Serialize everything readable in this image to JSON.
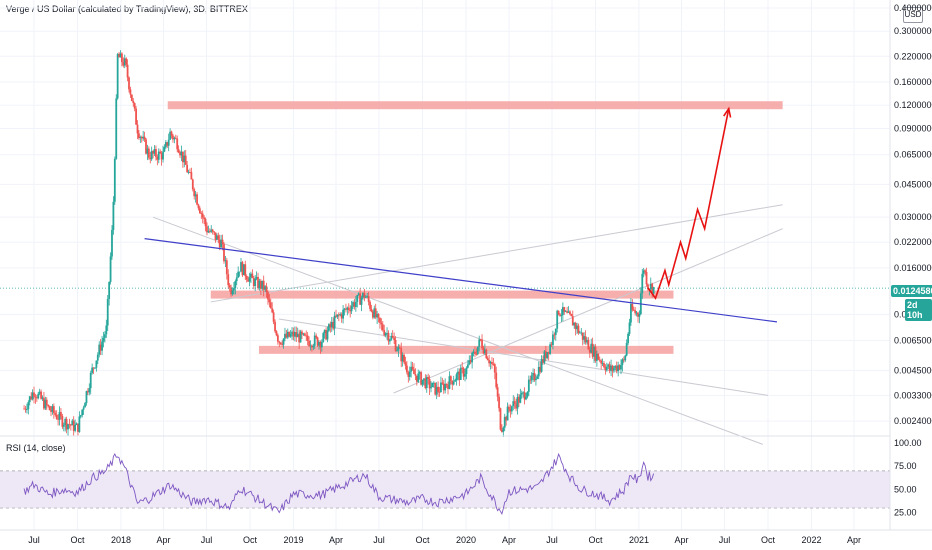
{
  "header": {
    "title": "Verge / US Dollar (calculated by TradingView), 3D, BITTREX",
    "currency_button": "USD"
  },
  "rsi": {
    "title": "RSI (14, close)",
    "ticks": [
      "100.00",
      "75.00",
      "50.00",
      "25.00"
    ],
    "tick_values": [
      100,
      75,
      50,
      25
    ],
    "upper_band": 70,
    "lower_band": 30
  },
  "badges": {
    "last_price": "0.01245807",
    "countdown": "2d 10h"
  },
  "colors": {
    "up": "#26a69a",
    "down": "#ef5350",
    "zone": "#f4a19f",
    "trendline": "#3f3fc9",
    "projection": "#e81212",
    "rsi_line": "#7e57c2",
    "rsi_band_fill": "#ede7f6",
    "channel": "#c9c9d1"
  },
  "chart_data": {
    "type": "candlestick",
    "title": "Verge / US Dollar (calculated by TradingView), 3D, BITTREX",
    "y_scale": "log",
    "y_ticks": [
      "0.40000000",
      "0.30000000",
      "0.22000000",
      "0.16000000",
      "0.12000000",
      "0.09000000",
      "0.06500000",
      "0.04500000",
      "0.03000000",
      "0.02200000",
      "0.01600000",
      "0.00900000",
      "0.00650000",
      "0.00450000",
      "0.00330000",
      "0.00240000"
    ],
    "y_tick_values": [
      0.4,
      0.3,
      0.22,
      0.16,
      0.12,
      0.09,
      0.065,
      0.045,
      0.03,
      0.022,
      0.016,
      0.009,
      0.0065,
      0.0045,
      0.0033,
      0.0024
    ],
    "x_ticks": [
      "Jul",
      "Oct",
      "2018",
      "Apr",
      "Jul",
      "Oct",
      "2019",
      "Apr",
      "Jul",
      "Oct",
      "2020",
      "Apr",
      "Jul",
      "Oct",
      "2021",
      "Apr",
      "Jul",
      "Oct",
      "2022",
      "Apr"
    ],
    "x_tick_dates": [
      "2017-07-01",
      "2017-10-01",
      "2018-01-01",
      "2018-04-01",
      "2018-07-01",
      "2018-10-01",
      "2019-01-01",
      "2019-04-01",
      "2019-07-01",
      "2019-10-01",
      "2020-01-01",
      "2020-04-01",
      "2020-07-01",
      "2020-10-01",
      "2021-01-01",
      "2021-04-01",
      "2021-07-01",
      "2021-10-01",
      "2022-01-01",
      "2022-04-01"
    ],
    "price_path": [
      [
        "2017-06-10",
        0.0028
      ],
      [
        "2017-07-01",
        0.0035
      ],
      [
        "2017-08-01",
        0.0028
      ],
      [
        "2017-09-01",
        0.0024
      ],
      [
        "2017-10-01",
        0.0022
      ],
      [
        "2017-11-01",
        0.0045
      ],
      [
        "2017-12-01",
        0.0075
      ],
      [
        "2017-12-15",
        0.03
      ],
      [
        "2017-12-25",
        0.22
      ],
      [
        "2018-01-10",
        0.2
      ],
      [
        "2018-02-05",
        0.09
      ],
      [
        "2018-03-01",
        0.065
      ],
      [
        "2018-04-01",
        0.065
      ],
      [
        "2018-04-15",
        0.085
      ],
      [
        "2018-05-01",
        0.075
      ],
      [
        "2018-06-01",
        0.045
      ],
      [
        "2018-07-01",
        0.026
      ],
      [
        "2018-08-01",
        0.022
      ],
      [
        "2018-08-20",
        0.012
      ],
      [
        "2018-09-10",
        0.0165
      ],
      [
        "2018-10-01",
        0.014
      ],
      [
        "2018-11-01",
        0.0125
      ],
      [
        "2018-12-01",
        0.0065
      ],
      [
        "2019-01-01",
        0.007
      ],
      [
        "2019-02-01",
        0.0065
      ],
      [
        "2019-03-01",
        0.0065
      ],
      [
        "2019-04-01",
        0.0085
      ],
      [
        "2019-05-01",
        0.01
      ],
      [
        "2019-06-01",
        0.0115
      ],
      [
        "2019-07-01",
        0.008
      ],
      [
        "2019-08-01",
        0.0065
      ],
      [
        "2019-09-01",
        0.0045
      ],
      [
        "2019-10-01",
        0.004
      ],
      [
        "2019-11-01",
        0.0035
      ],
      [
        "2019-12-01",
        0.004
      ],
      [
        "2020-01-01",
        0.0045
      ],
      [
        "2020-02-01",
        0.0065
      ],
      [
        "2020-03-01",
        0.0045
      ],
      [
        "2020-03-15",
        0.0022
      ],
      [
        "2020-04-01",
        0.0028
      ],
      [
        "2020-05-01",
        0.0033
      ],
      [
        "2020-06-01",
        0.0045
      ],
      [
        "2020-07-01",
        0.0065
      ],
      [
        "2020-07-15",
        0.0095
      ],
      [
        "2020-08-10",
        0.0085
      ],
      [
        "2020-09-01",
        0.007
      ],
      [
        "2020-10-01",
        0.0055
      ],
      [
        "2020-11-01",
        0.0045
      ],
      [
        "2020-12-01",
        0.005
      ],
      [
        "2020-12-15",
        0.0095
      ],
      [
        "2021-01-01",
        0.009
      ],
      [
        "2021-01-10",
        0.0165
      ],
      [
        "2021-01-20",
        0.013
      ],
      [
        "2021-02-01",
        0.01245807
      ]
    ],
    "rsi_path": [
      [
        "2017-06-10",
        48
      ],
      [
        "2017-07-01",
        55
      ],
      [
        "2017-08-01",
        45
      ],
      [
        "2017-09-01",
        50
      ],
      [
        "2017-10-01",
        47
      ],
      [
        "2017-11-01",
        62
      ],
      [
        "2017-12-01",
        70
      ],
      [
        "2017-12-25",
        88
      ],
      [
        "2018-01-10",
        72
      ],
      [
        "2018-02-05",
        35
      ],
      [
        "2018-03-01",
        40
      ],
      [
        "2018-04-15",
        55
      ],
      [
        "2018-06-01",
        36
      ],
      [
        "2018-07-01",
        40
      ],
      [
        "2018-08-20",
        30
      ],
      [
        "2018-09-10",
        52
      ],
      [
        "2018-10-01",
        45
      ],
      [
        "2018-12-01",
        25
      ],
      [
        "2019-01-01",
        45
      ],
      [
        "2019-03-01",
        44
      ],
      [
        "2019-05-01",
        58
      ],
      [
        "2019-06-01",
        66
      ],
      [
        "2019-07-01",
        42
      ],
      [
        "2019-09-01",
        36
      ],
      [
        "2019-10-01",
        40
      ],
      [
        "2019-11-01",
        36
      ],
      [
        "2020-01-01",
        45
      ],
      [
        "2020-02-01",
        62
      ],
      [
        "2020-03-15",
        26
      ],
      [
        "2020-04-01",
        48
      ],
      [
        "2020-06-01",
        52
      ],
      [
        "2020-07-15",
        85
      ],
      [
        "2020-08-10",
        62
      ],
      [
        "2020-09-01",
        50
      ],
      [
        "2020-10-01",
        45
      ],
      [
        "2020-11-01",
        38
      ],
      [
        "2020-12-01",
        50
      ],
      [
        "2020-12-15",
        66
      ],
      [
        "2021-01-01",
        58
      ],
      [
        "2021-01-10",
        82
      ],
      [
        "2021-01-20",
        64
      ],
      [
        "2021-02-01",
        65
      ]
    ],
    "zones": [
      {
        "from": "2018-04-10",
        "to": "2021-11-01",
        "price": 0.12
      },
      {
        "from": "2018-07-10",
        "to": "2021-03-15",
        "price": 0.0115
      },
      {
        "from": "2018-10-20",
        "to": "2021-03-15",
        "price": 0.0058
      }
    ],
    "trendline": [
      [
        "2018-02-20",
        0.023
      ],
      [
        "2021-10-20",
        0.0082
      ]
    ],
    "projection": [
      [
        "2021-01-20",
        0.0125
      ],
      [
        "2021-02-05",
        0.011
      ],
      [
        "2021-02-25",
        0.0155
      ],
      [
        "2021-03-05",
        0.013
      ],
      [
        "2021-03-30",
        0.022
      ],
      [
        "2021-04-10",
        0.018
      ],
      [
        "2021-05-05",
        0.033
      ],
      [
        "2021-05-20",
        0.026
      ],
      [
        "2021-07-10",
        0.115
      ]
    ],
    "channels": [
      [
        [
          "2018-07-10",
          0.0105
        ],
        [
          "2021-11-01",
          0.035
        ]
      ],
      [
        [
          "2019-08-01",
          0.0034
        ],
        [
          "2021-11-01",
          0.026
        ]
      ],
      [
        [
          "2018-03-10",
          0.03
        ],
        [
          "2021-09-20",
          0.0018
        ]
      ],
      [
        [
          "2018-12-01",
          0.0085
        ],
        [
          "2021-10-01",
          0.0033
        ]
      ]
    ]
  }
}
